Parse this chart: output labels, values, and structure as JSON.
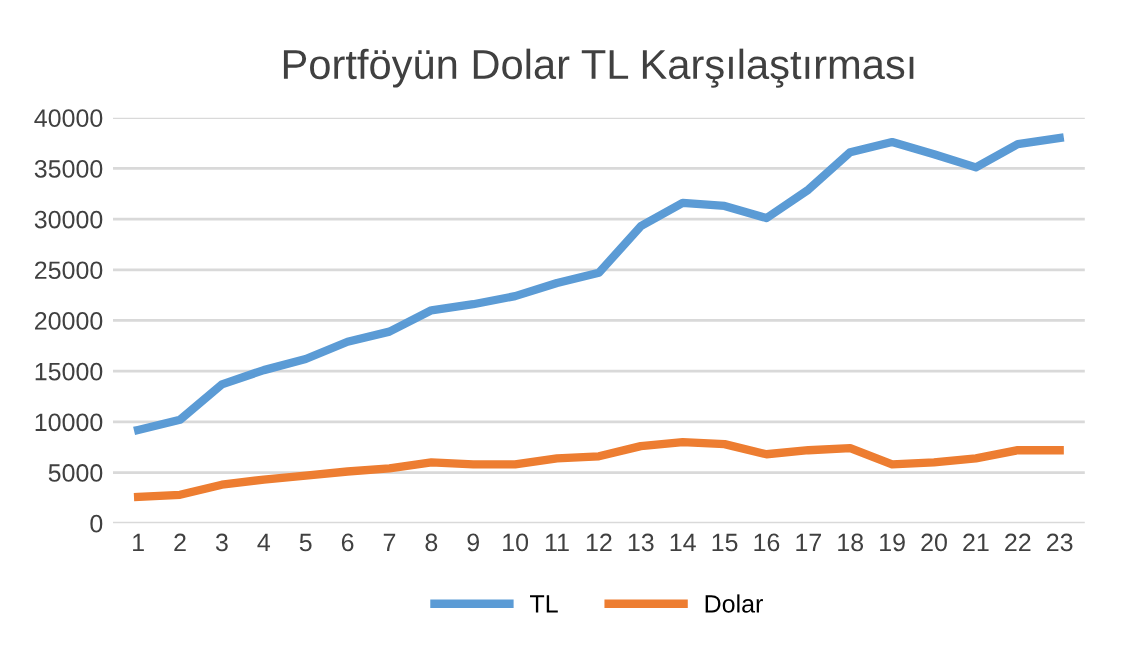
{
  "chart_data": {
    "type": "line",
    "title": "Portföyün Dolar TL Karşılaştırması",
    "categories": [
      "1",
      "2",
      "3",
      "4",
      "5",
      "6",
      "7",
      "8",
      "9",
      "10",
      "11",
      "12",
      "13",
      "14",
      "15",
      "16",
      "17",
      "18",
      "19",
      "20",
      "21",
      "22",
      "23"
    ],
    "series": [
      {
        "name": "TL",
        "color": "#5b9bd5",
        "values": [
          9200,
          10200,
          13700,
          15100,
          16200,
          17900,
          18900,
          21000,
          21600,
          22400,
          23700,
          24700,
          29300,
          31600,
          31300,
          30100,
          32900,
          36600,
          37600,
          36400,
          35100,
          37400,
          38000
        ]
      },
      {
        "name": "Dolar",
        "color": "#ed7d31",
        "values": [
          2600,
          2800,
          3800,
          4300,
          4700,
          5100,
          5400,
          6000,
          5800,
          5800,
          6400,
          6600,
          7600,
          8000,
          7800,
          6800,
          7200,
          7400,
          5800,
          6000,
          6400,
          7200,
          7200
        ]
      }
    ],
    "ylim": [
      0,
      40000
    ],
    "yticks": [
      0,
      5000,
      10000,
      15000,
      20000,
      25000,
      30000,
      35000,
      40000
    ],
    "grid": "y",
    "legend": "bottom",
    "marker": "none",
    "line_style": "solid"
  }
}
